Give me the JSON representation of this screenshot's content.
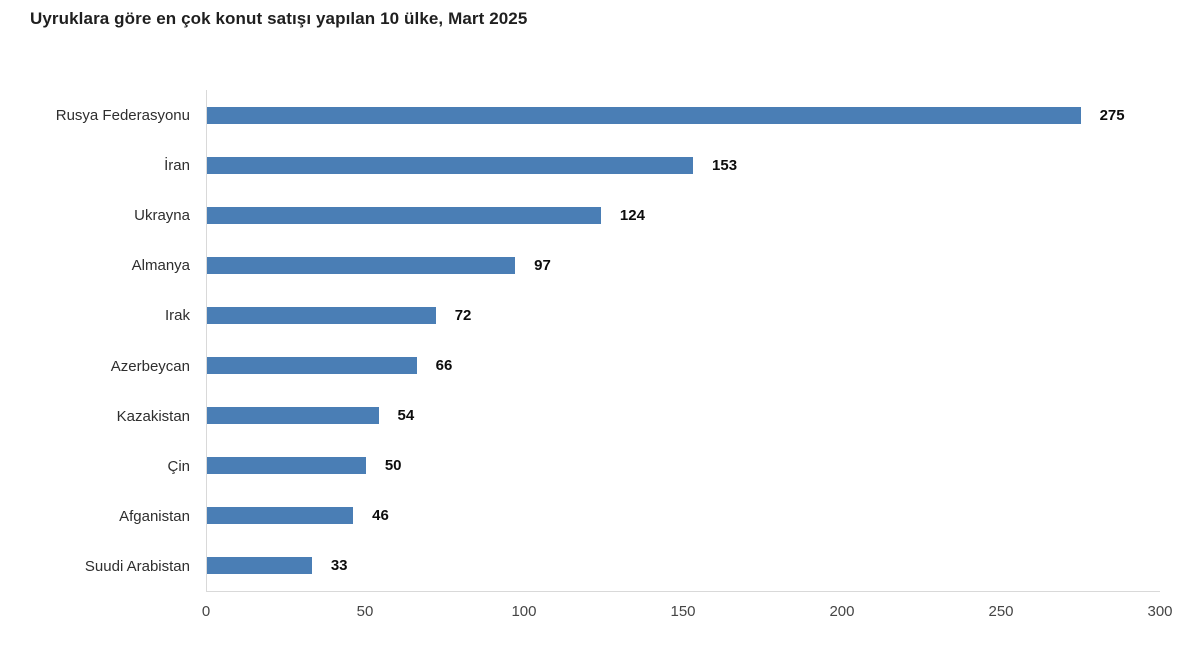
{
  "title": "Uyruklara göre en çok konut satışı yapılan 10 ülke, Mart 2025",
  "colors": {
    "background": "#ffffff",
    "bar": "#4a7eb5",
    "axis_line": "#d9d9d9",
    "title_text": "#1f1f1f",
    "category_text": "#2e2e2e",
    "value_text": "#0d0d0d",
    "tick_text": "#454545"
  },
  "chart_data": {
    "type": "bar",
    "orientation": "horizontal",
    "title": "Uyruklara göre en çok konut satışı yapılan 10 ülke, Mart 2025",
    "categories": [
      "Rusya Federasyonu",
      "İran",
      "Ukrayna",
      "Almanya",
      "Irak",
      "Azerbeycan",
      "Kazakistan",
      "Çin",
      "Afganistan",
      "Suudi Arabistan"
    ],
    "values": [
      275,
      153,
      124,
      97,
      72,
      66,
      54,
      50,
      46,
      33
    ],
    "xlabel": "",
    "ylabel": "",
    "xlim": [
      0,
      300
    ],
    "xticks": [
      0,
      50,
      100,
      150,
      200,
      250,
      300
    ],
    "grid": false,
    "legend": false,
    "value_labels": true,
    "bar_order": "descending"
  }
}
